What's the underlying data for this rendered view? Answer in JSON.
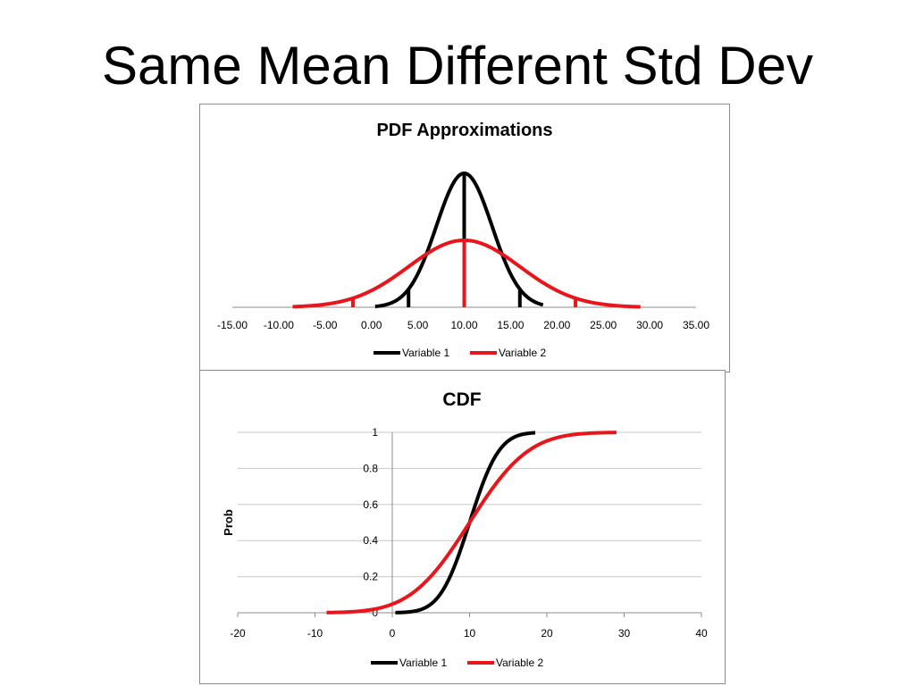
{
  "slide": {
    "title": "Same Mean Different Std Dev"
  },
  "colors": {
    "variable1": "#000000",
    "variable2": "#e8161b",
    "grid": "#c8c8c8",
    "axis": "#8c8c8c"
  },
  "chart_data": [
    {
      "type": "line",
      "title": "PDF Approximations",
      "xlabel": "",
      "ylabel": "",
      "xlim": [
        -15,
        35
      ],
      "x_tick_labels": [
        "-15.00",
        "-10.00",
        "-5.00",
        "0.00",
        "5.00",
        "10.00",
        "15.00",
        "20.00",
        "25.00",
        "30.00",
        "35.00"
      ],
      "y_tick_labels": [],
      "grid": false,
      "legend": "bottom",
      "series": [
        {
          "name": "Variable 1",
          "distribution": "normal",
          "mean": 10,
          "std_dev": 3,
          "x_range": [
            0.4,
            18.5
          ],
          "marker_lines_x": [
            4,
            10,
            16
          ],
          "color": "#000000"
        },
        {
          "name": "Variable 2",
          "distribution": "normal",
          "mean": 10,
          "std_dev": 6,
          "x_range": [
            -8.5,
            29
          ],
          "marker_lines_x": [
            -2,
            10,
            22
          ],
          "color": "#e8161b"
        }
      ]
    },
    {
      "type": "line",
      "title": "CDF",
      "xlabel": "",
      "ylabel": "Prob",
      "xlim": [
        -20,
        40
      ],
      "ylim": [
        0,
        1
      ],
      "x_tick_labels": [
        "-20",
        "-10",
        "0",
        "10",
        "20",
        "30",
        "40"
      ],
      "y_tick_labels": [
        "0",
        "0.2",
        "0.4",
        "0.6",
        "0.8",
        "1"
      ],
      "grid": true,
      "legend": "bottom",
      "series": [
        {
          "name": "Variable 1",
          "distribution": "normal_cdf",
          "mean": 10,
          "std_dev": 3,
          "x_range": [
            0.4,
            18.5
          ],
          "color": "#000000"
        },
        {
          "name": "Variable 2",
          "distribution": "normal_cdf",
          "mean": 10,
          "std_dev": 6,
          "x_range": [
            -8.5,
            29
          ],
          "color": "#e8161b"
        }
      ]
    }
  ]
}
